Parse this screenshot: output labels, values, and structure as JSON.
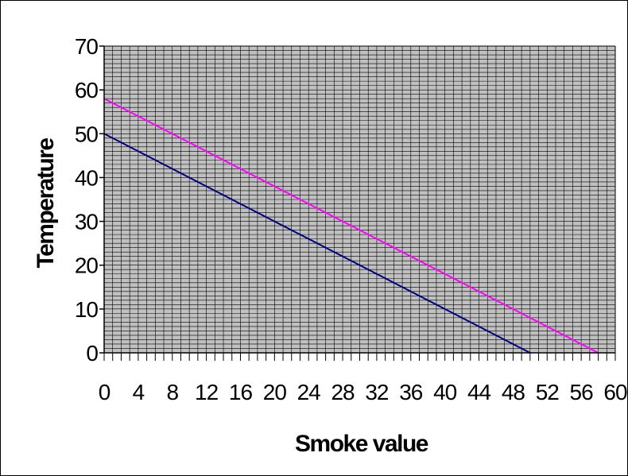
{
  "chart_data": {
    "type": "line",
    "xlabel": "Smoke value",
    "ylabel": "Temperature",
    "xlim": [
      0,
      60
    ],
    "ylim": [
      0,
      70
    ],
    "x_ticks": [
      0,
      4,
      8,
      12,
      16,
      20,
      24,
      28,
      32,
      36,
      40,
      44,
      48,
      52,
      56,
      60
    ],
    "y_ticks": [
      0,
      10,
      20,
      30,
      40,
      50,
      60,
      70
    ],
    "x_minor_step": 1,
    "y_minor_step": 1,
    "grid": true,
    "plot_background": "#c0c0c0",
    "grid_color": "#000000",
    "series": [
      {
        "x": [
          0,
          50
        ],
        "y": [
          50,
          0
        ],
        "color": "#000080"
      },
      {
        "x": [
          0,
          58
        ],
        "y": [
          58,
          0
        ],
        "color": "#ff00ff"
      }
    ]
  }
}
